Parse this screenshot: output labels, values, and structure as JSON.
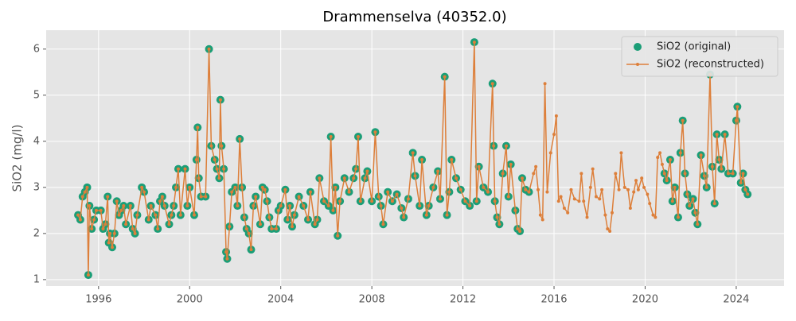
{
  "chart_data": {
    "type": "line",
    "title": "Drammenselva (40352.0)",
    "y_label": "SiO2 (mg/l)",
    "xlim": [
      1993.7,
      2026.1
    ],
    "xticks": [
      1996,
      2000,
      2004,
      2008,
      2012,
      2016,
      2020,
      2024
    ],
    "ylim": [
      0.86,
      6.41
    ],
    "yticks": [
      1,
      2,
      3,
      4,
      5,
      6
    ],
    "grid": true,
    "legend": "upper right",
    "x": [
      1995.1,
      1995.2,
      1995.3,
      1995.4,
      1995.5,
      1995.55,
      1995.6,
      1995.7,
      1995.8,
      1995.9,
      1996.1,
      1996.2,
      1996.3,
      1996.4,
      1996.45,
      1996.5,
      1996.6,
      1996.7,
      1996.8,
      1996.9,
      1997.0,
      1997.1,
      1997.2,
      1997.4,
      1997.5,
      1997.6,
      1997.7,
      1997.9,
      1998.0,
      1998.2,
      1998.3,
      1998.5,
      1998.6,
      1998.7,
      1998.8,
      1998.9,
      1999.1,
      1999.2,
      1999.3,
      1999.4,
      1999.5,
      1999.6,
      1999.8,
      1999.9,
      2000.0,
      2000.2,
      2000.3,
      2000.35,
      2000.4,
      2000.5,
      2000.7,
      2000.85,
      2000.95,
      2001.1,
      2001.2,
      2001.3,
      2001.35,
      2001.4,
      2001.5,
      2001.6,
      2001.65,
      2001.75,
      2001.85,
      2002.0,
      2002.1,
      2002.2,
      2002.3,
      2002.4,
      2002.5,
      2002.6,
      2002.7,
      2002.8,
      2002.9,
      2003.1,
      2003.2,
      2003.3,
      2003.4,
      2003.5,
      2003.6,
      2003.8,
      2003.9,
      2004.0,
      2004.2,
      2004.3,
      2004.4,
      2004.5,
      2004.6,
      2004.8,
      2005.0,
      2005.2,
      2005.3,
      2005.5,
      2005.6,
      2005.7,
      2005.9,
      2006.1,
      2006.2,
      2006.3,
      2006.4,
      2006.5,
      2006.6,
      2006.8,
      2007.0,
      2007.2,
      2007.3,
      2007.4,
      2007.5,
      2007.7,
      2007.8,
      2008.0,
      2008.15,
      2008.3,
      2008.4,
      2008.5,
      2008.7,
      2008.9,
      2009.1,
      2009.3,
      2009.4,
      2009.6,
      2009.8,
      2009.9,
      2010.1,
      2010.2,
      2010.4,
      2010.5,
      2010.7,
      2010.9,
      2011.0,
      2011.2,
      2011.3,
      2011.4,
      2011.5,
      2011.7,
      2011.9,
      2012.1,
      2012.3,
      2012.5,
      2012.6,
      2012.7,
      2012.9,
      2013.1,
      2013.3,
      2013.35,
      2013.4,
      2013.5,
      2013.6,
      2013.75,
      2013.9,
      2014.0,
      2014.1,
      2014.3,
      2014.4,
      2014.5,
      2014.6,
      2014.75,
      2014.9,
      2015.1,
      2015.2,
      2015.3,
      2015.4,
      2015.5,
      2015.6,
      2015.7,
      2015.85,
      2016.0,
      2016.1,
      2016.2,
      2016.3,
      2016.45,
      2016.6,
      2016.75,
      2016.9,
      2017.1,
      2017.2,
      2017.3,
      2017.45,
      2017.6,
      2017.7,
      2017.85,
      2018.0,
      2018.1,
      2018.25,
      2018.35,
      2018.45,
      2018.55,
      2018.7,
      2018.85,
      2018.95,
      2019.1,
      2019.25,
      2019.35,
      2019.5,
      2019.6,
      2019.7,
      2019.85,
      2019.95,
      2020.1,
      2020.2,
      2020.35,
      2020.45,
      2020.55,
      2020.65,
      2020.75,
      2020.85,
      2020.95,
      2021.1,
      2021.2,
      2021.3,
      2021.45,
      2021.55,
      2021.65,
      2021.75,
      2021.85,
      2021.95,
      2022.1,
      2022.2,
      2022.3,
      2022.45,
      2022.6,
      2022.7,
      2022.85,
      2022.95,
      2023.05,
      2023.15,
      2023.25,
      2023.35,
      2023.5,
      2023.65,
      2023.85,
      2024.0,
      2024.05,
      2024.2,
      2024.3,
      2024.4,
      2024.5
    ],
    "series": [
      {
        "name": "SiO2 (original)",
        "color": "#1b9e77",
        "values": [
          2.4,
          2.3,
          2.8,
          2.9,
          3.0,
          1.1,
          2.6,
          2.1,
          2.3,
          2.5,
          2.5,
          2.1,
          2.2,
          2.8,
          1.8,
          2.0,
          1.7,
          2.0,
          2.7,
          2.4,
          2.5,
          2.6,
          2.2,
          2.6,
          2.1,
          2.0,
          2.4,
          3.0,
          2.9,
          2.3,
          2.6,
          2.4,
          2.1,
          2.7,
          2.8,
          2.6,
          2.2,
          2.4,
          2.6,
          3.0,
          3.4,
          2.4,
          3.4,
          2.6,
          3.0,
          2.4,
          3.6,
          4.3,
          3.2,
          2.8,
          2.8,
          6.0,
          3.9,
          3.6,
          3.4,
          3.2,
          4.9,
          3.9,
          3.4,
          1.6,
          1.45,
          2.15,
          2.9,
          3.0,
          2.6,
          4.05,
          3.0,
          2.35,
          2.1,
          2.0,
          1.65,
          2.6,
          2.8,
          2.2,
          3.0,
          2.95,
          2.7,
          2.35,
          2.1,
          2.1,
          2.5,
          2.6,
          2.95,
          2.3,
          2.6,
          2.15,
          2.4,
          2.8,
          2.6,
          2.3,
          2.9,
          2.2,
          2.3,
          3.2,
          2.7,
          2.6,
          4.1,
          2.5,
          3.0,
          1.95,
          2.7,
          3.2,
          2.9,
          3.2,
          3.4,
          4.1,
          2.7,
          3.2,
          3.35,
          2.7,
          4.2,
          2.8,
          2.6,
          2.2,
          2.9,
          2.7,
          2.85,
          2.55,
          2.35,
          2.75,
          3.75,
          3.25,
          2.6,
          3.6,
          2.4,
          2.6,
          3.0,
          3.35,
          2.75,
          5.4,
          2.4,
          2.9,
          3.6,
          3.2,
          2.95,
          2.7,
          2.6,
          6.15,
          2.7,
          3.45,
          3.0,
          2.9,
          5.25,
          3.9,
          2.7,
          2.35,
          2.2,
          3.3,
          3.9,
          2.8,
          3.5,
          2.5,
          2.1,
          2.05,
          3.2,
          2.95,
          2.9,
          null,
          null,
          null,
          null,
          null,
          null,
          null,
          null,
          null,
          null,
          null,
          null,
          null,
          null,
          null,
          null,
          null,
          null,
          null,
          null,
          null,
          null,
          null,
          null,
          null,
          null,
          null,
          null,
          null,
          null,
          null,
          null,
          null,
          null,
          null,
          null,
          null,
          null,
          null,
          null,
          null,
          null,
          null,
          null,
          null,
          null,
          null,
          3.3,
          3.15,
          3.6,
          2.7,
          3.0,
          2.35,
          3.75,
          4.45,
          3.3,
          2.85,
          2.6,
          2.75,
          2.45,
          2.2,
          3.7,
          3.25,
          3.0,
          5.45,
          3.45,
          2.65,
          4.15,
          3.6,
          3.4,
          4.15,
          3.3,
          3.3,
          4.45,
          4.75,
          3.1,
          3.3,
          2.95,
          2.85
        ]
      },
      {
        "name": "SiO2 (reconstructed)",
        "color": "#dd7f3a",
        "values": [
          2.4,
          2.3,
          2.8,
          2.9,
          3.0,
          1.1,
          2.6,
          2.1,
          2.3,
          2.5,
          2.5,
          2.1,
          2.2,
          2.8,
          1.8,
          2.0,
          1.7,
          2.0,
          2.7,
          2.4,
          2.5,
          2.6,
          2.2,
          2.6,
          2.1,
          2.0,
          2.4,
          3.0,
          2.9,
          2.3,
          2.6,
          2.4,
          2.1,
          2.7,
          2.8,
          2.6,
          2.2,
          2.4,
          2.6,
          3.0,
          3.4,
          2.4,
          3.4,
          2.6,
          3.0,
          2.4,
          3.6,
          4.3,
          3.2,
          2.8,
          2.8,
          6.0,
          3.9,
          3.6,
          3.4,
          3.2,
          4.9,
          3.9,
          3.4,
          1.6,
          1.45,
          2.15,
          2.9,
          3.0,
          2.6,
          4.05,
          3.0,
          2.35,
          2.1,
          2.0,
          1.65,
          2.6,
          2.8,
          2.2,
          3.0,
          2.95,
          2.7,
          2.35,
          2.1,
          2.1,
          2.5,
          2.6,
          2.95,
          2.3,
          2.6,
          2.15,
          2.4,
          2.8,
          2.6,
          2.3,
          2.9,
          2.2,
          2.3,
          3.2,
          2.7,
          2.6,
          4.1,
          2.5,
          3.0,
          1.95,
          2.7,
          3.2,
          2.9,
          3.2,
          3.4,
          4.1,
          2.7,
          3.2,
          3.35,
          2.7,
          4.2,
          2.8,
          2.6,
          2.2,
          2.9,
          2.7,
          2.85,
          2.55,
          2.35,
          2.75,
          3.75,
          3.25,
          2.6,
          3.6,
          2.4,
          2.6,
          3.0,
          3.35,
          2.75,
          5.4,
          2.4,
          2.9,
          3.6,
          3.2,
          2.95,
          2.7,
          2.6,
          6.15,
          2.7,
          3.45,
          3.0,
          2.9,
          5.25,
          3.9,
          2.7,
          2.35,
          2.2,
          3.3,
          3.9,
          2.8,
          3.5,
          2.5,
          2.1,
          2.05,
          3.2,
          2.95,
          2.9,
          3.3,
          3.45,
          2.95,
          2.4,
          2.3,
          5.25,
          2.9,
          3.75,
          4.15,
          4.55,
          2.7,
          2.8,
          2.55,
          2.45,
          2.95,
          2.75,
          2.7,
          3.3,
          2.7,
          2.35,
          3.0,
          3.4,
          2.8,
          2.75,
          2.95,
          2.4,
          2.1,
          2.05,
          2.45,
          3.3,
          2.95,
          3.75,
          3.0,
          2.95,
          2.55,
          2.9,
          3.15,
          2.95,
          3.2,
          3.0,
          2.85,
          2.65,
          2.4,
          2.35,
          3.65,
          3.75,
          3.5,
          3.3,
          3.15,
          3.6,
          2.7,
          3.0,
          2.35,
          3.75,
          4.45,
          3.3,
          2.85,
          2.6,
          2.75,
          2.45,
          2.2,
          3.7,
          3.25,
          3.0,
          5.45,
          3.45,
          2.65,
          4.15,
          3.6,
          3.4,
          4.15,
          3.3,
          3.3,
          4.45,
          4.75,
          3.1,
          3.3,
          2.95,
          2.85
        ]
      }
    ]
  }
}
